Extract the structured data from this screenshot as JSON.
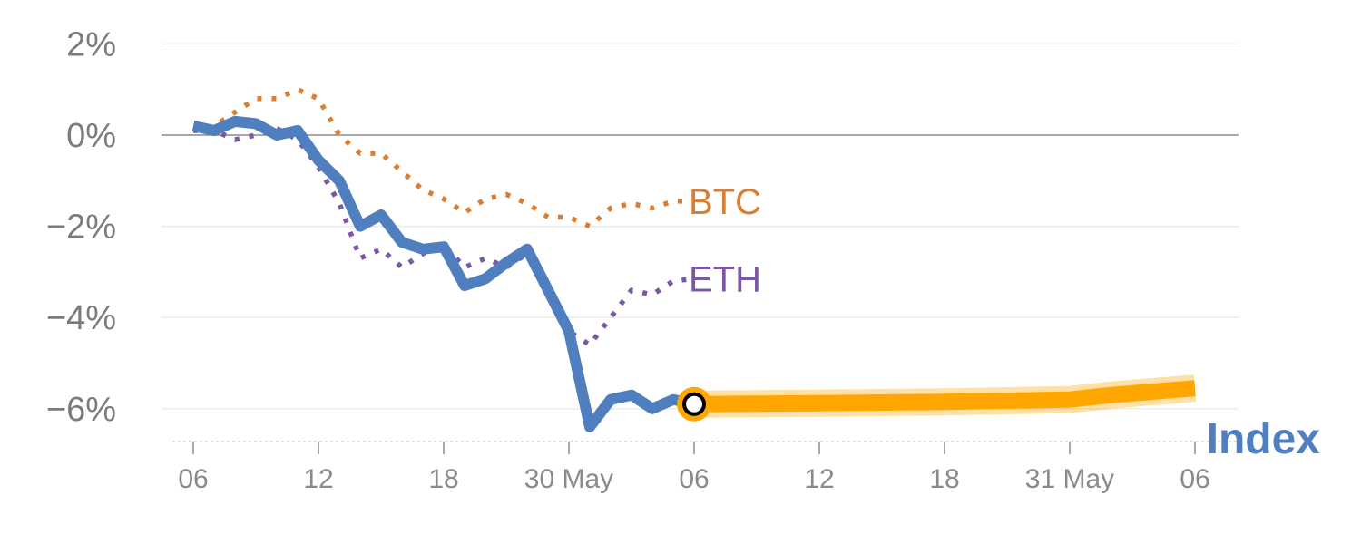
{
  "chart_data": {
    "type": "line",
    "xlabel": "",
    "ylabel": "",
    "ylim": [
      -6.8,
      2.4
    ],
    "xlim": [
      0,
      48
    ],
    "grid": true,
    "yticks": [
      {
        "value": 2,
        "label": "2%"
      },
      {
        "value": 0,
        "label": "0%"
      },
      {
        "value": -2,
        "label": "−2%"
      },
      {
        "value": -4,
        "label": "−4%"
      },
      {
        "value": -6,
        "label": "−6%"
      }
    ],
    "xticks": [
      {
        "value": 0,
        "label": "06"
      },
      {
        "value": 6,
        "label": "12"
      },
      {
        "value": 12,
        "label": "18"
      },
      {
        "value": 18,
        "label": "30 May"
      },
      {
        "value": 24,
        "label": "06"
      },
      {
        "value": 30,
        "label": "12"
      },
      {
        "value": 36,
        "label": "18"
      },
      {
        "value": 42,
        "label": "31 May"
      },
      {
        "value": 48,
        "label": "06"
      }
    ],
    "series": [
      {
        "name": "BTC",
        "color": "#d97f35",
        "style": "dotted",
        "points": [
          [
            0,
            0.1
          ],
          [
            1,
            0.2
          ],
          [
            2,
            0.5
          ],
          [
            3,
            0.8
          ],
          [
            4,
            0.8
          ],
          [
            5,
            1.0
          ],
          [
            6,
            0.8
          ],
          [
            7,
            0.0
          ],
          [
            8,
            -0.4
          ],
          [
            9,
            -0.4
          ],
          [
            10,
            -0.8
          ],
          [
            11,
            -1.2
          ],
          [
            12,
            -1.4
          ],
          [
            13,
            -1.7
          ],
          [
            14,
            -1.4
          ],
          [
            15,
            -1.3
          ],
          [
            16,
            -1.5
          ],
          [
            17,
            -1.8
          ],
          [
            18,
            -1.8
          ],
          [
            19,
            -2.0
          ],
          [
            20,
            -1.6
          ],
          [
            21,
            -1.5
          ],
          [
            22,
            -1.6
          ],
          [
            23,
            -1.45
          ],
          [
            24,
            -1.45
          ]
        ]
      },
      {
        "name": "ETH",
        "color": "#7b58a4",
        "style": "dotted",
        "points": [
          [
            0,
            0.1
          ],
          [
            1,
            0.1
          ],
          [
            2,
            -0.1
          ],
          [
            3,
            0.0
          ],
          [
            4,
            0.15
          ],
          [
            5,
            -0.1
          ],
          [
            6,
            -0.7
          ],
          [
            7,
            -1.5
          ],
          [
            8,
            -2.7
          ],
          [
            9,
            -2.5
          ],
          [
            10,
            -2.9
          ],
          [
            11,
            -2.6
          ],
          [
            12,
            -2.4
          ],
          [
            13,
            -2.9
          ],
          [
            14,
            -2.7
          ],
          [
            15,
            -2.9
          ],
          [
            16,
            -2.6
          ],
          [
            17,
            -3.4
          ],
          [
            18,
            -4.3
          ],
          [
            19,
            -4.6
          ],
          [
            20,
            -4.0
          ],
          [
            21,
            -3.4
          ],
          [
            22,
            -3.5
          ],
          [
            23,
            -3.2
          ],
          [
            24,
            -3.15
          ]
        ]
      },
      {
        "name": "Index",
        "color": "#4f7fbf",
        "style": "solid",
        "points": [
          [
            0,
            0.2
          ],
          [
            1,
            0.1
          ],
          [
            2,
            0.3
          ],
          [
            3,
            0.25
          ],
          [
            4,
            0.0
          ],
          [
            5,
            0.1
          ],
          [
            6,
            -0.55
          ],
          [
            7,
            -1.0
          ],
          [
            8,
            -2.0
          ],
          [
            9,
            -1.75
          ],
          [
            10,
            -2.35
          ],
          [
            11,
            -2.5
          ],
          [
            12,
            -2.45
          ],
          [
            13,
            -3.3
          ],
          [
            14,
            -3.15
          ],
          [
            15,
            -2.8
          ],
          [
            16,
            -2.5
          ],
          [
            17,
            -3.4
          ],
          [
            18,
            -4.3
          ],
          [
            19,
            -6.4
          ],
          [
            20,
            -5.8
          ],
          [
            21,
            -5.7
          ],
          [
            22,
            -6.0
          ],
          [
            23,
            -5.8
          ],
          [
            24,
            -5.9
          ]
        ]
      },
      {
        "name": "",
        "color": "#ffa600",
        "style": "forecast",
        "points": [
          [
            24,
            -5.9
          ],
          [
            30,
            -5.88
          ],
          [
            36,
            -5.85
          ],
          [
            42,
            -5.8
          ],
          [
            44,
            -5.7
          ],
          [
            48,
            -5.55
          ]
        ]
      }
    ],
    "highlight_point": {
      "x": 24,
      "y": -5.9
    }
  }
}
